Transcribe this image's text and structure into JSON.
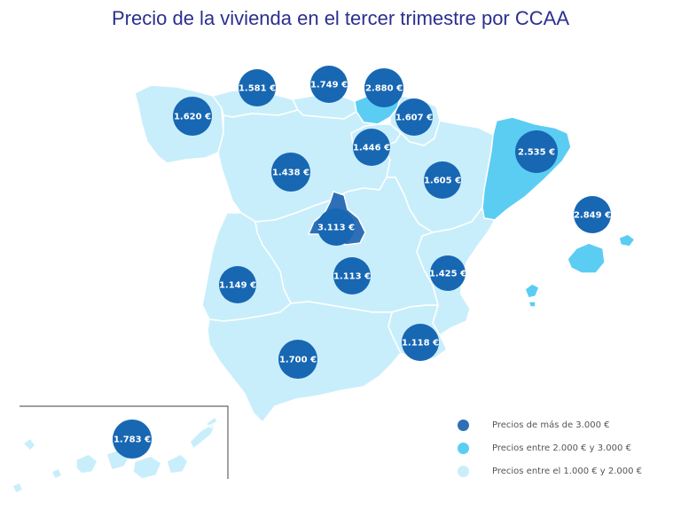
{
  "title": "Precio de la vivienda en el tercer trimestre por CCAA",
  "colors": {
    "high": "#2f6fb6",
    "mid": "#5bcdf3",
    "low": "#c9eefb",
    "marker": "#1767b3",
    "border": "#ffffff"
  },
  "regions": [
    {
      "id": "galicia",
      "label": "1.620 €",
      "band": "low"
    },
    {
      "id": "asturias",
      "label": "1.581 €",
      "band": "low"
    },
    {
      "id": "cantabria",
      "label": "1.749 €",
      "band": "low"
    },
    {
      "id": "pais-vasco",
      "label": "2.880 €",
      "band": "mid"
    },
    {
      "id": "navarra",
      "label": "1.607 €",
      "band": "low"
    },
    {
      "id": "la-rioja",
      "label": "1.446 €",
      "band": "low"
    },
    {
      "id": "castilla-y-leon",
      "label": "1.438 €",
      "band": "low"
    },
    {
      "id": "aragon",
      "label": "1.605 €",
      "band": "low"
    },
    {
      "id": "cataluna",
      "label": "2.535 €",
      "band": "mid"
    },
    {
      "id": "baleares",
      "label": "2.849 €",
      "band": "mid"
    },
    {
      "id": "madrid",
      "label": "3.113 €",
      "band": "high"
    },
    {
      "id": "castilla-la-mancha",
      "label": "1.113 €",
      "band": "low"
    },
    {
      "id": "extremadura",
      "label": "1.149 €",
      "band": "low"
    },
    {
      "id": "valencia",
      "label": "1.425 €",
      "band": "low"
    },
    {
      "id": "murcia",
      "label": "1.118 €",
      "band": "low"
    },
    {
      "id": "andalucia",
      "label": "1.700 €",
      "band": "low"
    },
    {
      "id": "canarias",
      "label": "1.783 €",
      "band": "low"
    }
  ],
  "legend": [
    {
      "label": "Precios de más de 3.000 €",
      "color": "#2f6fb6"
    },
    {
      "label": "Precios entre 2.000 € y 3.000 €",
      "color": "#5bcdf3"
    },
    {
      "label": "Precios entre el 1.000 € y 2.000 €",
      "color": "#c9eefb"
    }
  ]
}
